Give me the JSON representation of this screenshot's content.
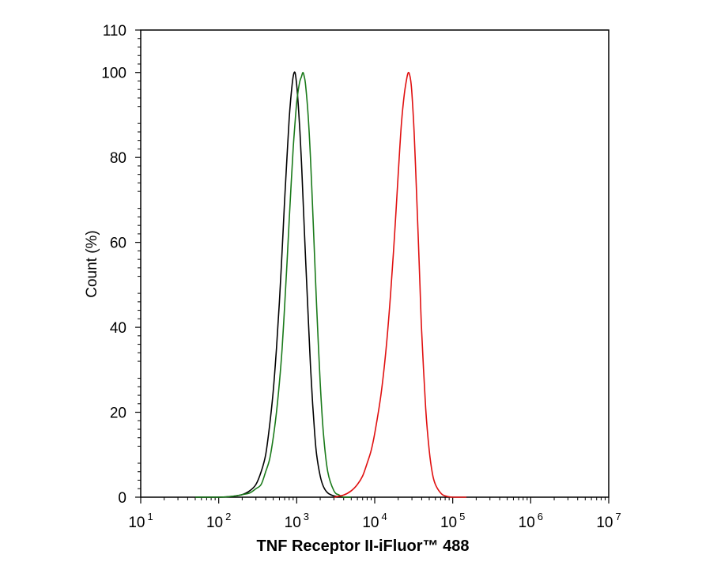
{
  "chart_data": {
    "type": "line",
    "xlabel": "TNF Receptor II-iFluor™ 488",
    "ylabel": "Count  (%)",
    "x_scale": "log",
    "xlim": [
      10,
      10000000
    ],
    "ylim": [
      0,
      110
    ],
    "x_ticks": [
      {
        "base": "10",
        "exp": "1"
      },
      {
        "base": "10",
        "exp": "2"
      },
      {
        "base": "10",
        "exp": "3"
      },
      {
        "base": "10",
        "exp": "4"
      },
      {
        "base": "10",
        "exp": "5"
      },
      {
        "base": "10",
        "exp": "6"
      },
      {
        "base": "10",
        "exp": "7"
      }
    ],
    "y_ticks": [
      "0",
      "20",
      "40",
      "60",
      "80",
      "100",
      "110"
    ],
    "y_tick_values": [
      0,
      20,
      40,
      60,
      80,
      100,
      110
    ],
    "legend": "none",
    "grid": false,
    "series": [
      {
        "color": "#000000",
        "x": [
          50,
          100,
          150,
          200,
          250,
          300,
          350,
          400,
          450,
          500,
          550,
          600,
          650,
          700,
          750,
          800,
          850,
          900,
          950,
          1000,
          1050,
          1100,
          1150,
          1200,
          1300,
          1400,
          1500,
          1600,
          1700,
          1800,
          2000,
          2200,
          2500,
          3000,
          3500,
          4000,
          5000
        ],
        "y": [
          0,
          0,
          0.2,
          0.6,
          1.5,
          3,
          6,
          10,
          17,
          25,
          35,
          46,
          58,
          70,
          80,
          89,
          95,
          99,
          100,
          97,
          92,
          86,
          79,
          71,
          56,
          43,
          31,
          22,
          15,
          10,
          5,
          2.5,
          1,
          0.3,
          0.1,
          0,
          0
        ]
      },
      {
        "color": "#1a7a1a",
        "x": [
          50,
          100,
          150,
          200,
          250,
          300,
          350,
          400,
          450,
          500,
          550,
          600,
          650,
          700,
          750,
          800,
          850,
          900,
          950,
          1000,
          1050,
          1100,
          1150,
          1200,
          1250,
          1300,
          1400,
          1500,
          1600,
          1700,
          1800,
          2000,
          2200,
          2500,
          3000,
          3500,
          4000,
          5000
        ],
        "y": [
          0,
          0,
          0.2,
          0.6,
          1,
          2,
          3,
          6,
          9,
          14,
          20,
          27,
          35,
          45,
          55,
          65,
          74,
          82,
          88,
          93,
          96,
          98,
          99,
          100,
          99,
          97,
          90,
          80,
          68,
          56,
          45,
          27,
          15,
          6,
          1.5,
          0.5,
          0,
          0
        ]
      },
      {
        "color": "#e01010",
        "x": [
          3000,
          4000,
          5000,
          6000,
          7000,
          8000,
          9000,
          10000,
          12000,
          14000,
          16000,
          18000,
          20000,
          22000,
          24000,
          26000,
          27000,
          28000,
          29000,
          30000,
          32000,
          34000,
          36000,
          38000,
          40000,
          45000,
          50000,
          55000,
          60000,
          70000,
          80000,
          100000,
          150000
        ],
        "y": [
          0,
          0.5,
          1.5,
          3,
          5,
          8,
          11,
          15,
          24,
          35,
          48,
          62,
          76,
          88,
          95,
          99,
          100,
          99.5,
          98,
          95,
          86,
          74,
          62,
          50,
          39,
          21,
          11,
          5.5,
          3,
          1,
          0.3,
          0,
          0
        ]
      }
    ]
  }
}
